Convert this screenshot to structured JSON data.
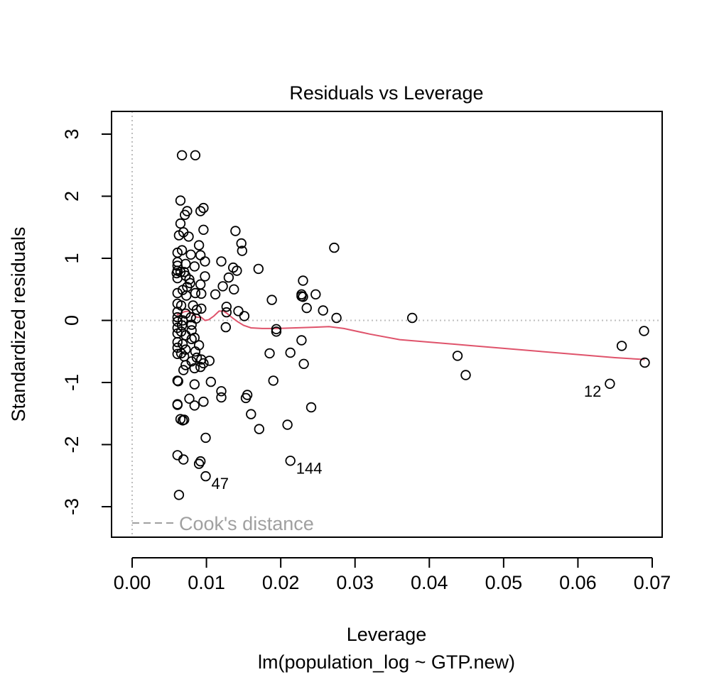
{
  "chart_data": {
    "type": "scatter",
    "title": "Residuals vs Leverage",
    "xlabel": "Leverage",
    "subtitle": "lm(population_log ~ GTP.new)",
    "ylabel": "Standardized residuals",
    "xlim": [
      0.0,
      0.07
    ],
    "ylim": [
      -3.35,
      3.37
    ],
    "x_ticks": [
      0.0,
      0.01,
      0.02,
      0.03,
      0.04,
      0.05,
      0.06,
      0.07
    ],
    "x_tick_labels": [
      "0.00",
      "0.01",
      "0.02",
      "0.03",
      "0.04",
      "0.05",
      "0.06",
      "0.07"
    ],
    "y_ticks": [
      -3,
      -2,
      -1,
      0,
      1,
      2,
      3
    ],
    "y_tick_labels": [
      "-3",
      "-2",
      "-1",
      "0",
      "1",
      "2",
      "3"
    ],
    "reference_lines": {
      "horizontal_y": 0,
      "vertical_x": 0
    },
    "legend": {
      "label": "Cook's distance",
      "position": "bottom-left"
    },
    "colors": {
      "smooth": "#DF536B",
      "points": "#000000",
      "reference": "#bebebe",
      "legend_text": "#a0a0a0"
    },
    "points": [
      [
        0.0067,
        2.66
      ],
      [
        0.0085,
        2.66
      ],
      [
        0.0065,
        1.93
      ],
      [
        0.0096,
        1.81
      ],
      [
        0.0074,
        1.76
      ],
      [
        0.0092,
        1.76
      ],
      [
        0.0071,
        1.7
      ],
      [
        0.0065,
        1.56
      ],
      [
        0.0096,
        1.46
      ],
      [
        0.0069,
        1.42
      ],
      [
        0.0063,
        1.37
      ],
      [
        0.0076,
        1.35
      ],
      [
        0.009,
        1.21
      ],
      [
        0.0067,
        1.13
      ],
      [
        0.0061,
        1.09
      ],
      [
        0.0079,
        1.06
      ],
      [
        0.0092,
        1.05
      ],
      [
        0.0098,
        0.95
      ],
      [
        0.0061,
        0.94
      ],
      [
        0.0072,
        0.91
      ],
      [
        0.0061,
        0.88
      ],
      [
        0.0084,
        0.87
      ],
      [
        0.0061,
        0.8
      ],
      [
        0.0065,
        0.78
      ],
      [
        0.007,
        0.78
      ],
      [
        0.006,
        0.76
      ],
      [
        0.0072,
        0.72
      ],
      [
        0.0098,
        0.71
      ],
      [
        0.0061,
        0.68
      ],
      [
        0.0077,
        0.66
      ],
      [
        0.0078,
        0.6
      ],
      [
        0.0092,
        0.58
      ],
      [
        0.0074,
        0.54
      ],
      [
        0.0068,
        0.49
      ],
      [
        0.0085,
        0.44
      ],
      [
        0.0061,
        0.44
      ],
      [
        0.0093,
        0.43
      ],
      [
        0.0073,
        0.4
      ],
      [
        0.0061,
        0.27
      ],
      [
        0.0066,
        0.24
      ],
      [
        0.0082,
        0.24
      ],
      [
        0.0093,
        0.19
      ],
      [
        0.0087,
        0.17
      ],
      [
        0.0061,
        0.14
      ],
      [
        0.0072,
        0.11
      ],
      [
        0.0079,
        0.05
      ],
      [
        0.0061,
        0.05
      ],
      [
        0.0086,
        0.03
      ],
      [
        0.0068,
        0.0
      ],
      [
        0.0061,
        -0.02
      ],
      [
        0.008,
        -0.07
      ],
      [
        0.0067,
        -0.08
      ],
      [
        0.0061,
        -0.12
      ],
      [
        0.008,
        -0.16
      ],
      [
        0.0066,
        -0.18
      ],
      [
        0.0061,
        -0.21
      ],
      [
        0.0072,
        -0.24
      ],
      [
        0.0084,
        -0.28
      ],
      [
        0.008,
        -0.3
      ],
      [
        0.0061,
        -0.35
      ],
      [
        0.0068,
        -0.38
      ],
      [
        0.009,
        -0.4
      ],
      [
        0.0061,
        -0.44
      ],
      [
        0.0072,
        -0.47
      ],
      [
        0.0085,
        -0.5
      ],
      [
        0.0066,
        -0.53
      ],
      [
        0.0061,
        -0.54
      ],
      [
        0.007,
        -0.58
      ],
      [
        0.0087,
        -0.6
      ],
      [
        0.0093,
        -0.63
      ],
      [
        0.0104,
        -0.65
      ],
      [
        0.008,
        -0.66
      ],
      [
        0.0096,
        -0.69
      ],
      [
        0.0072,
        -0.72
      ],
      [
        0.0092,
        -0.75
      ],
      [
        0.0084,
        -0.77
      ],
      [
        0.0069,
        -0.8
      ],
      [
        0.0061,
        -0.97
      ],
      [
        0.0062,
        -0.98
      ],
      [
        0.0106,
        -0.99
      ],
      [
        0.0084,
        -1.03
      ],
      [
        0.012,
        -1.14
      ],
      [
        0.012,
        -1.24
      ],
      [
        0.0077,
        -1.26
      ],
      [
        0.0096,
        -1.31
      ],
      [
        0.0061,
        -1.35
      ],
      [
        0.0061,
        -1.36
      ],
      [
        0.0084,
        -1.37
      ],
      [
        0.0065,
        -1.59
      ],
      [
        0.0068,
        -1.61
      ],
      [
        0.007,
        -1.6
      ],
      [
        0.0099,
        -1.89
      ],
      [
        0.0061,
        -2.17
      ],
      [
        0.0069,
        -2.24
      ],
      [
        0.0092,
        -2.27
      ],
      [
        0.009,
        -2.31
      ],
      [
        0.0099,
        -2.51
      ],
      [
        0.0063,
        -2.81
      ],
      [
        0.0139,
        1.44
      ],
      [
        0.0147,
        1.24
      ],
      [
        0.0148,
        1.12
      ],
      [
        0.012,
        0.95
      ],
      [
        0.0136,
        0.85
      ],
      [
        0.0141,
        0.8
      ],
      [
        0.013,
        0.69
      ],
      [
        0.0122,
        0.55
      ],
      [
        0.0137,
        0.5
      ],
      [
        0.0112,
        0.42
      ],
      [
        0.0127,
        0.22
      ],
      [
        0.0143,
        0.15
      ],
      [
        0.0127,
        0.13
      ],
      [
        0.0151,
        0.07
      ],
      [
        0.0126,
        -0.11
      ],
      [
        0.0155,
        -1.2
      ],
      [
        0.0153,
        -1.25
      ],
      [
        0.016,
        -1.51
      ],
      [
        0.0171,
        -1.75
      ],
      [
        0.017,
        0.83
      ],
      [
        0.0188,
        0.33
      ],
      [
        0.0185,
        -0.53
      ],
      [
        0.019,
        -0.97
      ],
      [
        0.0194,
        -0.14
      ],
      [
        0.0194,
        -0.18
      ],
      [
        0.0209,
        -1.68
      ],
      [
        0.0213,
        -0.52
      ],
      [
        0.0213,
        -2.26
      ],
      [
        0.0228,
        0.39
      ],
      [
        0.0228,
        0.42
      ],
      [
        0.023,
        0.38
      ],
      [
        0.023,
        0.64
      ],
      [
        0.0228,
        -0.32
      ],
      [
        0.0231,
        -0.7
      ],
      [
        0.0235,
        0.2
      ],
      [
        0.0241,
        -1.4
      ],
      [
        0.0247,
        0.42
      ],
      [
        0.0257,
        0.16
      ],
      [
        0.0272,
        1.17
      ],
      [
        0.0275,
        0.04
      ],
      [
        0.0377,
        0.04
      ],
      [
        0.0438,
        -0.57
      ],
      [
        0.0449,
        -0.88
      ],
      [
        0.0643,
        -1.02
      ],
      [
        0.0659,
        -0.41
      ],
      [
        0.0689,
        -0.17
      ],
      [
        0.069,
        -0.68
      ]
    ],
    "smooth_line": [
      [
        0.006,
        0.09
      ],
      [
        0.0065,
        0.11
      ],
      [
        0.007,
        0.14
      ],
      [
        0.0076,
        0.15
      ],
      [
        0.0082,
        0.1
      ],
      [
        0.0087,
        0.05
      ],
      [
        0.0093,
        0.05
      ],
      [
        0.0098,
        0.0
      ],
      [
        0.0103,
        0.01
      ],
      [
        0.011,
        0.07
      ],
      [
        0.0117,
        0.15
      ],
      [
        0.0123,
        0.15
      ],
      [
        0.0128,
        0.11
      ],
      [
        0.0135,
        0.04
      ],
      [
        0.0142,
        -0.02
      ],
      [
        0.015,
        -0.08
      ],
      [
        0.016,
        -0.12
      ],
      [
        0.0175,
        -0.13
      ],
      [
        0.0195,
        -0.13
      ],
      [
        0.022,
        -0.12
      ],
      [
        0.0245,
        -0.11
      ],
      [
        0.0265,
        -0.1
      ],
      [
        0.0285,
        -0.13
      ],
      [
        0.032,
        -0.22
      ],
      [
        0.036,
        -0.31
      ],
      [
        0.04,
        -0.35
      ],
      [
        0.045,
        -0.4
      ],
      [
        0.05,
        -0.45
      ],
      [
        0.055,
        -0.5
      ],
      [
        0.06,
        -0.55
      ],
      [
        0.065,
        -0.6
      ],
      [
        0.069,
        -0.63
      ]
    ],
    "annotations": [
      {
        "label": "12",
        "x": 0.0643,
        "y": -1.02
      },
      {
        "label": "144",
        "x": 0.0213,
        "y": -2.26
      },
      {
        "label": "47",
        "x": 0.0099,
        "y": -2.51
      }
    ]
  }
}
